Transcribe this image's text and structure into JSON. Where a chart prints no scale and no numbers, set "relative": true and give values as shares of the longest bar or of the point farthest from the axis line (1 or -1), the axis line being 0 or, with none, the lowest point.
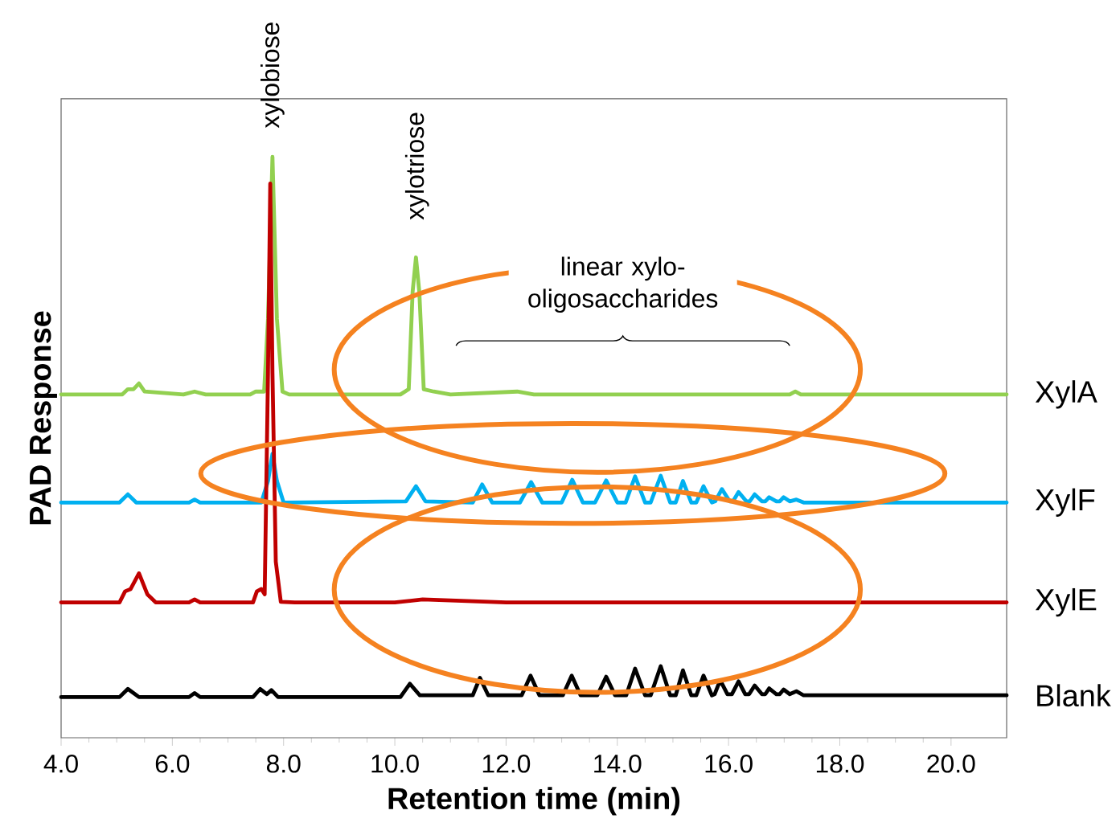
{
  "chart_data": {
    "type": "line",
    "relative": true,
    "xlabel": "Retention time (min)",
    "ylabel": "PAD Response",
    "xlim": [
      4,
      21
    ],
    "xticks": [
      {
        "value": 4,
        "label": "4.0"
      },
      {
        "value": 6,
        "label": "6.0"
      },
      {
        "value": 8,
        "label": "8.0"
      },
      {
        "value": 10,
        "label": "10.0"
      },
      {
        "value": 12,
        "label": "12.0"
      },
      {
        "value": 14,
        "label": "14.0"
      },
      {
        "value": 16,
        "label": "16.0"
      },
      {
        "value": 18,
        "label": "18.0"
      },
      {
        "value": 20,
        "label": "20.0"
      }
    ],
    "annotations": [
      "xylobiose",
      "xylotriose",
      "linear xylo-oligosaccharides"
    ],
    "series": [
      {
        "name": "XylA",
        "color": "#92d050",
        "x": [
          4,
          5.1,
          5.2,
          5.3,
          5.4,
          5.5,
          6.2,
          6.4,
          6.6,
          7.4,
          7.5,
          7.65,
          7.72,
          7.8,
          7.88,
          7.98,
          8.1,
          10.1,
          10.25,
          10.32,
          10.38,
          10.44,
          10.52,
          10.7,
          11,
          12.2,
          12.5,
          17.1,
          17.2,
          17.3,
          21
        ],
        "values": [
          0.591,
          0.591,
          0.6,
          0.6,
          0.61,
          0.596,
          0.591,
          0.596,
          0.591,
          0.591,
          0.596,
          0.596,
          0.721,
          1.0,
          0.721,
          0.596,
          0.591,
          0.591,
          0.6,
          0.768,
          0.827,
          0.768,
          0.6,
          0.596,
          0.591,
          0.596,
          0.591,
          0.591,
          0.596,
          0.591,
          0.591
        ]
      },
      {
        "name": "XylF",
        "color": "#00b0f0",
        "x": [
          4,
          5.05,
          5.2,
          5.35,
          6.3,
          6.4,
          6.5,
          7.6,
          7.72,
          7.8,
          7.88,
          8.0,
          10.2,
          10.38,
          10.55,
          11.4,
          11.57,
          11.75,
          12.25,
          12.45,
          12.65,
          13.0,
          13.19,
          13.38,
          13.6,
          13.8,
          14.0,
          14.15,
          14.32,
          14.5,
          14.6,
          14.78,
          14.95,
          15.05,
          15.18,
          15.33,
          15.42,
          15.55,
          15.7,
          15.76,
          15.88,
          16.02,
          16.08,
          16.18,
          16.32,
          16.38,
          16.47,
          16.6,
          16.66,
          16.73,
          16.86,
          16.92,
          16.99,
          17.1,
          17.22,
          17.35,
          21
        ],
        "values": [
          0.405,
          0.405,
          0.419,
          0.405,
          0.405,
          0.41,
          0.405,
          0.405,
          0.442,
          0.489,
          0.442,
          0.405,
          0.407,
          0.433,
          0.407,
          0.405,
          0.436,
          0.405,
          0.405,
          0.44,
          0.405,
          0.405,
          0.444,
          0.405,
          0.405,
          0.443,
          0.405,
          0.405,
          0.45,
          0.405,
          0.405,
          0.451,
          0.405,
          0.405,
          0.442,
          0.405,
          0.405,
          0.433,
          0.405,
          0.407,
          0.428,
          0.407,
          0.407,
          0.423,
          0.407,
          0.407,
          0.419,
          0.407,
          0.407,
          0.414,
          0.407,
          0.407,
          0.414,
          0.407,
          0.41,
          0.405,
          0.405
        ]
      },
      {
        "name": "XylE",
        "color": "#c00000",
        "x": [
          4,
          5.05,
          5.15,
          5.25,
          5.4,
          5.55,
          5.7,
          6.3,
          6.4,
          6.5,
          7.45,
          7.52,
          7.6,
          7.66,
          7.72,
          7.76,
          7.8,
          7.86,
          7.95,
          8.2,
          10,
          10.5,
          12,
          21
        ],
        "values": [
          0.233,
          0.233,
          0.252,
          0.256,
          0.283,
          0.247,
          0.233,
          0.233,
          0.238,
          0.233,
          0.233,
          0.252,
          0.256,
          0.247,
          0.628,
          0.954,
          0.628,
          0.303,
          0.234,
          0.233,
          0.233,
          0.238,
          0.233,
          0.233
        ]
      },
      {
        "name": "Blank",
        "color": "#000000",
        "x": [
          4,
          5.05,
          5.2,
          5.4,
          6.3,
          6.4,
          6.5,
          7.45,
          7.58,
          7.7,
          7.78,
          7.9,
          10.1,
          10.27,
          10.45,
          11.4,
          11.53,
          11.68,
          12.28,
          12.44,
          12.6,
          13.02,
          13.18,
          13.34,
          13.64,
          13.8,
          13.96,
          14.16,
          14.32,
          14.5,
          14.6,
          14.78,
          14.95,
          15.05,
          15.18,
          15.33,
          15.42,
          15.55,
          15.7,
          15.75,
          15.85,
          15.98,
          16.06,
          16.18,
          16.3,
          16.37,
          16.47,
          16.6,
          16.66,
          16.73,
          16.86,
          16.92,
          16.99,
          17.1,
          17.22,
          17.35,
          21
        ],
        "values": [
          0.07,
          0.07,
          0.084,
          0.07,
          0.07,
          0.077,
          0.07,
          0.07,
          0.084,
          0.075,
          0.082,
          0.07,
          0.07,
          0.093,
          0.073,
          0.073,
          0.103,
          0.073,
          0.073,
          0.107,
          0.073,
          0.073,
          0.107,
          0.073,
          0.073,
          0.105,
          0.073,
          0.073,
          0.119,
          0.073,
          0.073,
          0.123,
          0.073,
          0.073,
          0.116,
          0.073,
          0.073,
          0.107,
          0.073,
          0.075,
          0.099,
          0.075,
          0.075,
          0.097,
          0.075,
          0.075,
          0.09,
          0.075,
          0.075,
          0.085,
          0.075,
          0.075,
          0.083,
          0.075,
          0.08,
          0.073,
          0.073
        ]
      }
    ]
  }
}
